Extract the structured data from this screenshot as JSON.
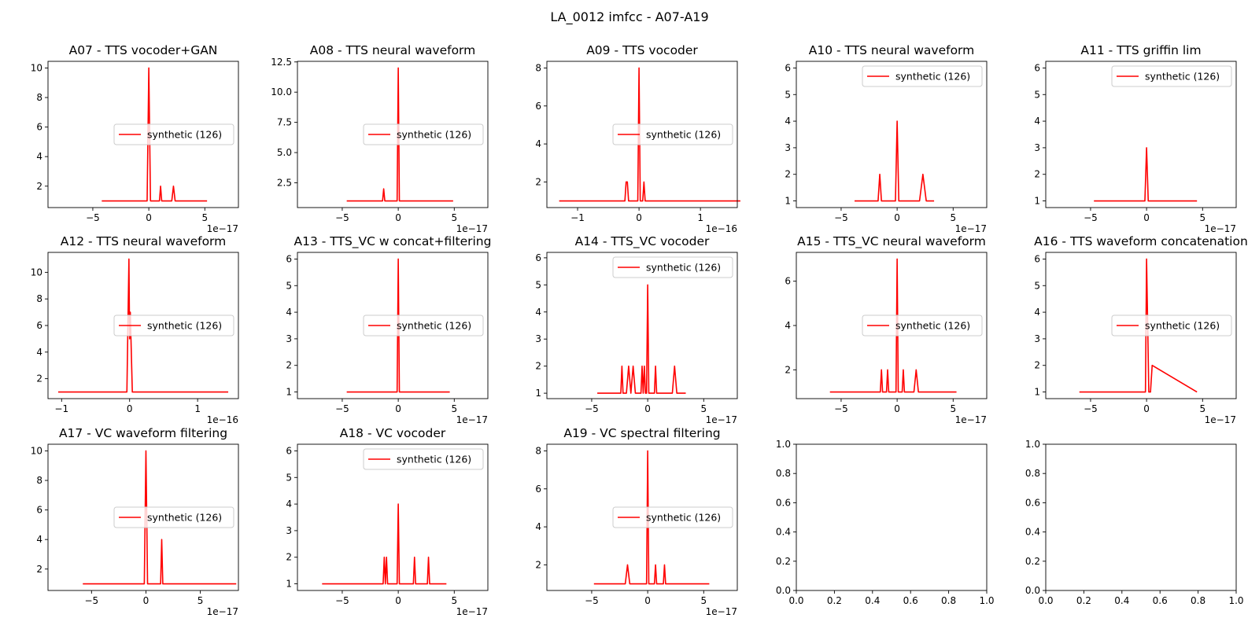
{
  "figure": {
    "title": "LA_0012 imfcc - A07-A19"
  },
  "colors": {
    "series": "#ff0000",
    "axes": "#000000",
    "legend_border": "#cccccc"
  },
  "chart_data": [
    {
      "type": "line",
      "title": "A07 - TTS vocoder+GAN",
      "xlim": [
        -9,
        8
      ],
      "ylim": [
        0.55,
        10.45
      ],
      "xticks": [
        -5,
        0,
        5
      ],
      "xticklabels": [
        "−5",
        "0",
        "5"
      ],
      "yticks": [
        2,
        4,
        6,
        8,
        10
      ],
      "yticklabels": [
        "2",
        "4",
        "6",
        "8",
        "10"
      ],
      "offset_text": "1e−17",
      "legend": {
        "loc": "center right"
      },
      "series": [
        {
          "name": "synthetic (126)",
          "color": "#ff0000",
          "x": [
            -4.2,
            -0.15,
            0,
            0.15,
            0.95,
            1.05,
            1.15,
            2.05,
            2.2,
            2.35,
            5.2
          ],
          "y": [
            1,
            1,
            10,
            1,
            1,
            2,
            1,
            1,
            2,
            1,
            1
          ]
        }
      ]
    },
    {
      "type": "line",
      "title": "A08 - TTS neural waveform",
      "xlim": [
        -9,
        8
      ],
      "ylim": [
        0.45,
        12.55
      ],
      "xticks": [
        -5,
        0,
        5
      ],
      "xticklabels": [
        "−5",
        "0",
        "5"
      ],
      "yticks": [
        2.5,
        5.0,
        7.5,
        10.0,
        12.5
      ],
      "yticklabels": [
        "2.5",
        "5.0",
        "7.5",
        "10.0",
        "12.5"
      ],
      "offset_text": "1e−17",
      "legend": {
        "loc": "center right"
      },
      "series": [
        {
          "name": "synthetic (126)",
          "color": "#ff0000",
          "x": [
            -4.6,
            -1.4,
            -1.3,
            -1.2,
            -0.1,
            0,
            0.1,
            4.9
          ],
          "y": [
            1,
            1,
            2,
            1,
            1,
            12,
            1,
            1
          ]
        }
      ]
    },
    {
      "type": "line",
      "title": "A09 - TTS vocoder",
      "xlim": [
        -1.5,
        1.6
      ],
      "ylim": [
        0.65,
        8.35
      ],
      "xticks": [
        -1,
        0,
        1
      ],
      "xticklabels": [
        "−1",
        "0",
        "1"
      ],
      "yticks": [
        2,
        4,
        6,
        8
      ],
      "yticklabels": [
        "2",
        "4",
        "6",
        "8"
      ],
      "offset_text": "1e−16",
      "legend": {
        "loc": "center right"
      },
      "series": [
        {
          "name": "synthetic (126)",
          "color": "#ff0000",
          "x": [
            -1.3,
            -0.23,
            -0.21,
            -0.19,
            -0.17,
            -0.02,
            0,
            0.02,
            0.06,
            0.08,
            0.1,
            1.65
          ],
          "y": [
            1,
            1,
            2,
            2,
            1,
            1,
            8,
            1,
            1,
            2,
            1,
            1
          ]
        }
      ]
    },
    {
      "type": "line",
      "title": "A10 - TTS neural waveform",
      "xlim": [
        -9,
        8
      ],
      "ylim": [
        0.75,
        6.25
      ],
      "xticks": [
        -5,
        0,
        5
      ],
      "xticklabels": [
        "−5",
        "0",
        "5"
      ],
      "yticks": [
        1,
        2,
        3,
        4,
        5,
        6
      ],
      "yticklabels": [
        "1",
        "2",
        "3",
        "4",
        "5",
        "6"
      ],
      "offset_text": "1e−17",
      "legend": {
        "loc": "upper right"
      },
      "series": [
        {
          "name": "synthetic (126)",
          "color": "#ff0000",
          "x": [
            -3.8,
            -1.7,
            -1.55,
            -1.4,
            -0.15,
            0,
            0.15,
            2.0,
            2.3,
            2.6,
            3.3
          ],
          "y": [
            1,
            1,
            2,
            1,
            1,
            4,
            1,
            1,
            2,
            1,
            1
          ]
        }
      ]
    },
    {
      "type": "line",
      "title": "A11 - TTS griffin lim",
      "xlim": [
        -9,
        8
      ],
      "ylim": [
        0.75,
        6.25
      ],
      "xticks": [
        -5,
        0,
        5
      ],
      "xticklabels": [
        "−5",
        "0",
        "5"
      ],
      "yticks": [
        1,
        2,
        3,
        4,
        5,
        6
      ],
      "yticklabels": [
        "1",
        "2",
        "3",
        "4",
        "5",
        "6"
      ],
      "offset_text": "1e−17",
      "legend": {
        "loc": "upper right"
      },
      "series": [
        {
          "name": "synthetic (126)",
          "color": "#ff0000",
          "x": [
            -4.7,
            -0.15,
            0,
            0.15,
            4.5
          ],
          "y": [
            1,
            1,
            3,
            1,
            1
          ]
        }
      ]
    },
    {
      "type": "line",
      "title": "A12 - TTS neural waveform",
      "xlim": [
        -1.2,
        1.6
      ],
      "ylim": [
        0.5,
        11.5
      ],
      "xticks": [
        -1,
        0,
        1
      ],
      "xticklabels": [
        "−1",
        "0",
        "1"
      ],
      "yticks": [
        2,
        4,
        6,
        8,
        10
      ],
      "yticklabels": [
        "2",
        "4",
        "6",
        "8",
        "10"
      ],
      "offset_text": "1e−16",
      "legend": {
        "loc": "center right"
      },
      "series": [
        {
          "name": "synthetic (126)",
          "color": "#ff0000",
          "x": [
            -1.05,
            -0.04,
            -0.01,
            0,
            0.01,
            0.04,
            1.45
          ],
          "y": [
            1,
            1,
            11,
            5,
            7,
            1,
            1
          ]
        }
      ]
    },
    {
      "type": "line",
      "title": "A13 - TTS_VC w concat+filtering",
      "xlim": [
        -9,
        8
      ],
      "ylim": [
        0.75,
        6.25
      ],
      "xticks": [
        -5,
        0,
        5
      ],
      "xticklabels": [
        "−5",
        "0",
        "5"
      ],
      "yticks": [
        1,
        2,
        3,
        4,
        5,
        6
      ],
      "yticklabels": [
        "1",
        "2",
        "3",
        "4",
        "5",
        "6"
      ],
      "offset_text": "1e−17",
      "legend": {
        "loc": "center right"
      },
      "series": [
        {
          "name": "synthetic (126)",
          "color": "#ff0000",
          "x": [
            -4.6,
            -0.1,
            0,
            0.1,
            4.6
          ],
          "y": [
            1,
            1,
            6,
            1,
            1
          ]
        }
      ]
    },
    {
      "type": "line",
      "title": "A14 - TTS_VC vocoder",
      "xlim": [
        -9,
        8
      ],
      "ylim": [
        0.8,
        6.2
      ],
      "xticks": [
        -5,
        0,
        5
      ],
      "xticklabels": [
        "−5",
        "0",
        "5"
      ],
      "yticks": [
        1,
        2,
        3,
        4,
        5,
        6
      ],
      "yticklabels": [
        "1",
        "2",
        "3",
        "4",
        "5",
        "6"
      ],
      "offset_text": "1e−17",
      "legend": {
        "loc": "upper right"
      },
      "series": [
        {
          "name": "synthetic (126)",
          "color": "#ff0000",
          "x": [
            -4.5,
            -2.4,
            -2.3,
            -2.2,
            -1.9,
            -1.7,
            -1.5,
            -1.3,
            -1.1,
            -0.6,
            -0.5,
            -0.4,
            -0.3,
            -0.2,
            -0.1,
            0,
            0.1,
            0.6,
            0.7,
            0.8,
            2.2,
            2.4,
            2.6,
            3.4
          ],
          "y": [
            1,
            1,
            2,
            1,
            1,
            2,
            1,
            2,
            1,
            1,
            2,
            1,
            2,
            1,
            1,
            5,
            1,
            1,
            2,
            1,
            1,
            2,
            1,
            1
          ]
        }
      ]
    },
    {
      "type": "line",
      "title": "A15 - TTS_VC neural waveform",
      "xlim": [
        -9,
        8
      ],
      "ylim": [
        0.7,
        7.3
      ],
      "xticks": [
        -5,
        0,
        5
      ],
      "xticklabels": [
        "−5",
        "0",
        "5"
      ],
      "yticks": [
        2,
        4,
        6
      ],
      "yticklabels": [
        "2",
        "4",
        "6"
      ],
      "offset_text": "1e−17",
      "legend": {
        "loc": "center right"
      },
      "series": [
        {
          "name": "synthetic (126)",
          "color": "#ff0000",
          "x": [
            -6,
            -1.5,
            -1.4,
            -1.3,
            -0.95,
            -0.85,
            -0.75,
            -0.1,
            0,
            0.1,
            0.45,
            0.55,
            0.65,
            1.5,
            1.7,
            1.9,
            5.3
          ],
          "y": [
            1,
            1,
            2,
            1,
            1,
            2,
            1,
            1,
            7,
            1,
            1,
            2,
            1,
            1,
            2,
            1,
            1
          ]
        }
      ]
    },
    {
      "type": "line",
      "title": "A16 - TTS waveform concatenation",
      "xlim": [
        -9,
        8
      ],
      "ylim": [
        0.75,
        6.25
      ],
      "xticks": [
        -5,
        0,
        5
      ],
      "xticklabels": [
        "−5",
        "0",
        "5"
      ],
      "yticks": [
        1,
        2,
        3,
        4,
        5,
        6
      ],
      "yticklabels": [
        "1",
        "2",
        "3",
        "4",
        "5",
        "6"
      ],
      "offset_text": "1e−17",
      "legend": {
        "loc": "center right"
      },
      "series": [
        {
          "name": "synthetic (126)",
          "color": "#ff0000",
          "x": [
            -6,
            -0.1,
            0,
            0.2,
            0.35,
            0.5,
            4.5
          ],
          "y": [
            1,
            1,
            6,
            1,
            1,
            2,
            1
          ]
        }
      ]
    },
    {
      "type": "line",
      "title": "A17 - VC waveform filtering",
      "xlim": [
        -9,
        8.5
      ],
      "ylim": [
        0.55,
        10.45
      ],
      "xticks": [
        -5,
        0,
        5
      ],
      "xticklabels": [
        "−5",
        "0",
        "5"
      ],
      "yticks": [
        2,
        4,
        6,
        8,
        10
      ],
      "yticklabels": [
        "2",
        "4",
        "6",
        "8",
        "10"
      ],
      "offset_text": "1e−17",
      "legend": {
        "loc": "center right"
      },
      "series": [
        {
          "name": "synthetic (126)",
          "color": "#ff0000",
          "x": [
            -5.8,
            -0.15,
            0,
            0.15,
            1.35,
            1.45,
            1.55,
            8.3
          ],
          "y": [
            1,
            1,
            10,
            1,
            1,
            4,
            1,
            1
          ]
        }
      ]
    },
    {
      "type": "line",
      "title": "A18 - VC vocoder",
      "xlim": [
        -9,
        8
      ],
      "ylim": [
        0.75,
        6.25
      ],
      "xticks": [
        -5,
        0,
        5
      ],
      "xticklabels": [
        "−5",
        "0",
        "5"
      ],
      "yticks": [
        1,
        2,
        3,
        4,
        5,
        6
      ],
      "yticklabels": [
        "1",
        "2",
        "3",
        "4",
        "5",
        "6"
      ],
      "offset_text": "1e−17",
      "legend": {
        "loc": "upper right"
      },
      "series": [
        {
          "name": "synthetic (126)",
          "color": "#ff0000",
          "x": [
            -6.8,
            -1.35,
            -1.25,
            -1.15,
            -1.05,
            -0.95,
            -0.1,
            0,
            0.1,
            1.35,
            1.45,
            1.55,
            2.6,
            2.7,
            2.8,
            4.3
          ],
          "y": [
            1,
            1,
            2,
            1,
            2,
            1,
            1,
            4,
            1,
            1,
            2,
            1,
            1,
            2,
            1,
            1
          ]
        }
      ]
    },
    {
      "type": "line",
      "title": "A19 - VC spectral filtering",
      "xlim": [
        -9,
        8
      ],
      "ylim": [
        0.65,
        8.35
      ],
      "xticks": [
        -5,
        0,
        5
      ],
      "xticklabels": [
        "−5",
        "0",
        "5"
      ],
      "yticks": [
        2,
        4,
        6,
        8
      ],
      "yticklabels": [
        "2",
        "4",
        "6",
        "8"
      ],
      "offset_text": "1e−17",
      "legend": {
        "loc": "center right"
      },
      "series": [
        {
          "name": "synthetic (126)",
          "color": "#ff0000",
          "x": [
            -4.8,
            -2.0,
            -1.8,
            -1.6,
            -0.1,
            0,
            0.1,
            0.6,
            0.7,
            0.8,
            1.4,
            1.5,
            1.6,
            5.5
          ],
          "y": [
            1,
            1,
            2,
            1,
            1,
            8,
            1,
            1,
            2,
            1,
            1,
            2,
            1,
            1
          ]
        }
      ]
    },
    {
      "type": "line",
      "title": "",
      "xlim": [
        0,
        1
      ],
      "ylim": [
        0,
        1
      ],
      "xticks": [
        0,
        0.2,
        0.4,
        0.6,
        0.8,
        1.0
      ],
      "xticklabels": [
        "0.0",
        "0.2",
        "0.4",
        "0.6",
        "0.8",
        "1.0"
      ],
      "yticks": [
        0,
        0.2,
        0.4,
        0.6,
        0.8,
        1.0
      ],
      "yticklabels": [
        "0.0",
        "0.2",
        "0.4",
        "0.6",
        "0.8",
        "1.0"
      ],
      "offset_text": "",
      "legend": null,
      "series": []
    },
    {
      "type": "line",
      "title": "",
      "xlim": [
        0,
        1
      ],
      "ylim": [
        0,
        1
      ],
      "xticks": [
        0,
        0.2,
        0.4,
        0.6,
        0.8,
        1.0
      ],
      "xticklabels": [
        "0.0",
        "0.2",
        "0.4",
        "0.6",
        "0.8",
        "1.0"
      ],
      "yticks": [
        0,
        0.2,
        0.4,
        0.6,
        0.8,
        1.0
      ],
      "yticklabels": [
        "0.0",
        "0.2",
        "0.4",
        "0.6",
        "0.8",
        "1.0"
      ],
      "offset_text": "",
      "legend": null,
      "series": []
    }
  ]
}
